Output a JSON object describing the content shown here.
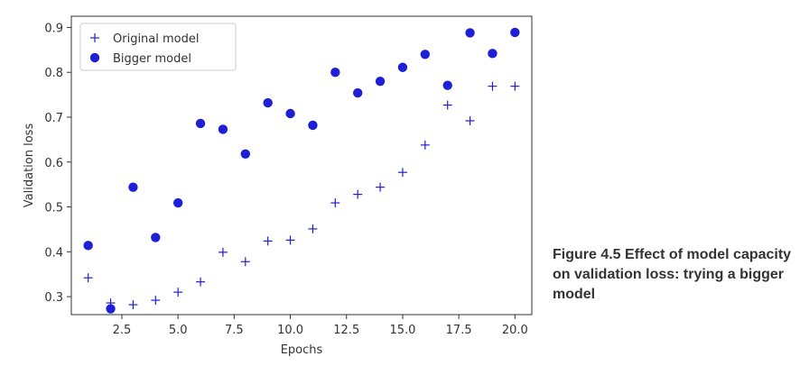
{
  "caption": {
    "figure_number": "Figure 4.5",
    "text": "Effect of model capacity on validation loss: trying a bigger model"
  },
  "colors": {
    "series": "#1f1fd6",
    "axis": "#333333"
  },
  "chart_data": {
    "type": "scatter",
    "title": "",
    "xlabel": "Epochs",
    "ylabel": "Validation loss",
    "xlim": [
      0.25,
      20.75
    ],
    "ylim": [
      0.26,
      0.925
    ],
    "xticks": [
      2.5,
      5.0,
      7.5,
      10.0,
      12.5,
      15.0,
      17.5,
      20.0
    ],
    "xtick_labels": [
      "2.5",
      "5.0",
      "7.5",
      "10.0",
      "12.5",
      "15.0",
      "17.5",
      "20.0"
    ],
    "yticks": [
      0.3,
      0.4,
      0.5,
      0.6,
      0.7,
      0.8,
      0.9
    ],
    "ytick_labels": [
      "0.3",
      "0.4",
      "0.5",
      "0.6",
      "0.7",
      "0.8",
      "0.9"
    ],
    "grid": false,
    "legend_position": "top-left",
    "series": [
      {
        "name": "Original model",
        "marker": "plus",
        "x": [
          1,
          2,
          3,
          4,
          5,
          6,
          7,
          8,
          9,
          10,
          11,
          12,
          13,
          14,
          15,
          16,
          17,
          18,
          19,
          20
        ],
        "y": [
          0.342,
          0.286,
          0.282,
          0.292,
          0.31,
          0.333,
          0.399,
          0.378,
          0.424,
          0.426,
          0.451,
          0.509,
          0.528,
          0.544,
          0.577,
          0.638,
          0.727,
          0.692,
          0.769,
          0.769
        ]
      },
      {
        "name": "Bigger model",
        "marker": "circle",
        "x": [
          1,
          2,
          3,
          4,
          5,
          6,
          7,
          8,
          9,
          10,
          11,
          12,
          13,
          14,
          15,
          16,
          17,
          18,
          19,
          20
        ],
        "y": [
          0.414,
          0.273,
          0.544,
          0.432,
          0.509,
          0.686,
          0.673,
          0.618,
          0.732,
          0.708,
          0.682,
          0.8,
          0.754,
          0.78,
          0.811,
          0.84,
          0.771,
          0.888,
          0.842,
          0.889
        ]
      }
    ]
  }
}
